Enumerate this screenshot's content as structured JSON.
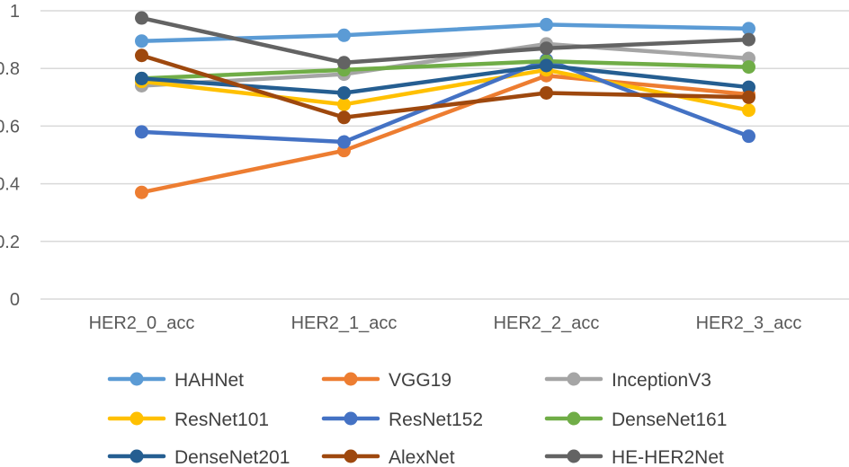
{
  "chart_data": {
    "type": "line",
    "title": "",
    "xlabel": "",
    "ylabel": "",
    "categories": [
      "HER2_0_acc",
      "HER2_1_acc",
      "HER2_2_acc",
      "HER2_3_acc"
    ],
    "ylim": [
      0,
      1
    ],
    "yticks": [
      0,
      0.2,
      0.4,
      0.6,
      0.8,
      1
    ],
    "ytick_labels": [
      "0",
      "0.2",
      "0.4",
      "0.6",
      "0.8",
      "1"
    ],
    "grid": true,
    "legend_position": "bottom",
    "series": [
      {
        "name": "HAHNet",
        "color": "#5B9BD5",
        "values": [
          0.895,
          0.915,
          0.952,
          0.938
        ]
      },
      {
        "name": "VGG19",
        "color": "#ED7D31",
        "values": [
          0.37,
          0.515,
          0.775,
          0.71
        ]
      },
      {
        "name": "InceptionV3",
        "color": "#A5A5A5",
        "values": [
          0.74,
          0.78,
          0.885,
          0.835
        ]
      },
      {
        "name": "ResNet101",
        "color": "#FFC000",
        "values": [
          0.755,
          0.675,
          0.795,
          0.655
        ]
      },
      {
        "name": "ResNet152",
        "color": "#4472C4",
        "values": [
          0.58,
          0.545,
          0.83,
          0.565
        ]
      },
      {
        "name": "DenseNet161",
        "color": "#70AD47",
        "values": [
          0.765,
          0.795,
          0.825,
          0.805
        ]
      },
      {
        "name": "DenseNet201",
        "color": "#255E91",
        "values": [
          0.765,
          0.715,
          0.81,
          0.735
        ]
      },
      {
        "name": "AlexNet",
        "color": "#9E480E",
        "values": [
          0.845,
          0.63,
          0.715,
          0.7
        ]
      },
      {
        "name": "HE-HER2Net",
        "color": "#636363",
        "values": [
          0.975,
          0.82,
          0.87,
          0.9
        ]
      }
    ]
  }
}
